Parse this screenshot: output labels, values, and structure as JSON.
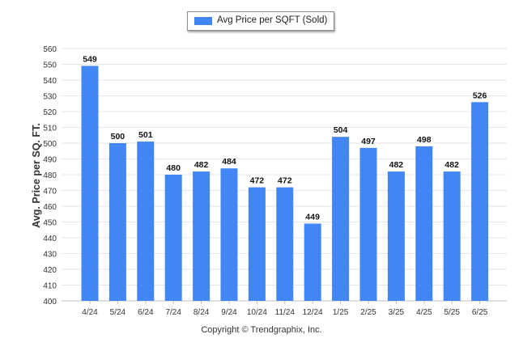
{
  "legend": {
    "label": "Avg Price per SQFT (Sold)"
  },
  "footer": {
    "copyright": "Copyright © Trendgraphix, Inc."
  },
  "colors": {
    "bar": "#4285f4",
    "grid": "#e6e6e6",
    "axis_text": "#333333"
  },
  "chart_data": {
    "type": "bar",
    "title": "",
    "xlabel": "",
    "ylabel": "Avg. Price per SQ. FT.",
    "categories": [
      "4/24",
      "5/24",
      "6/24",
      "7/24",
      "8/24",
      "9/24",
      "10/24",
      "11/24",
      "12/24",
      "1/25",
      "2/25",
      "3/25",
      "4/25",
      "5/25",
      "6/25"
    ],
    "series": [
      {
        "name": "Avg Price per SQFT (Sold)",
        "values": [
          549,
          500,
          501,
          480,
          482,
          484,
          472,
          472,
          449,
          504,
          497,
          482,
          498,
          482,
          526
        ]
      }
    ],
    "ylim": [
      400,
      560
    ],
    "yticks": [
      400,
      410,
      420,
      430,
      440,
      450,
      460,
      470,
      480,
      490,
      500,
      510,
      520,
      530,
      540,
      550,
      560
    ],
    "grid": true,
    "legend_position": "top-center",
    "data_labels": true
  }
}
